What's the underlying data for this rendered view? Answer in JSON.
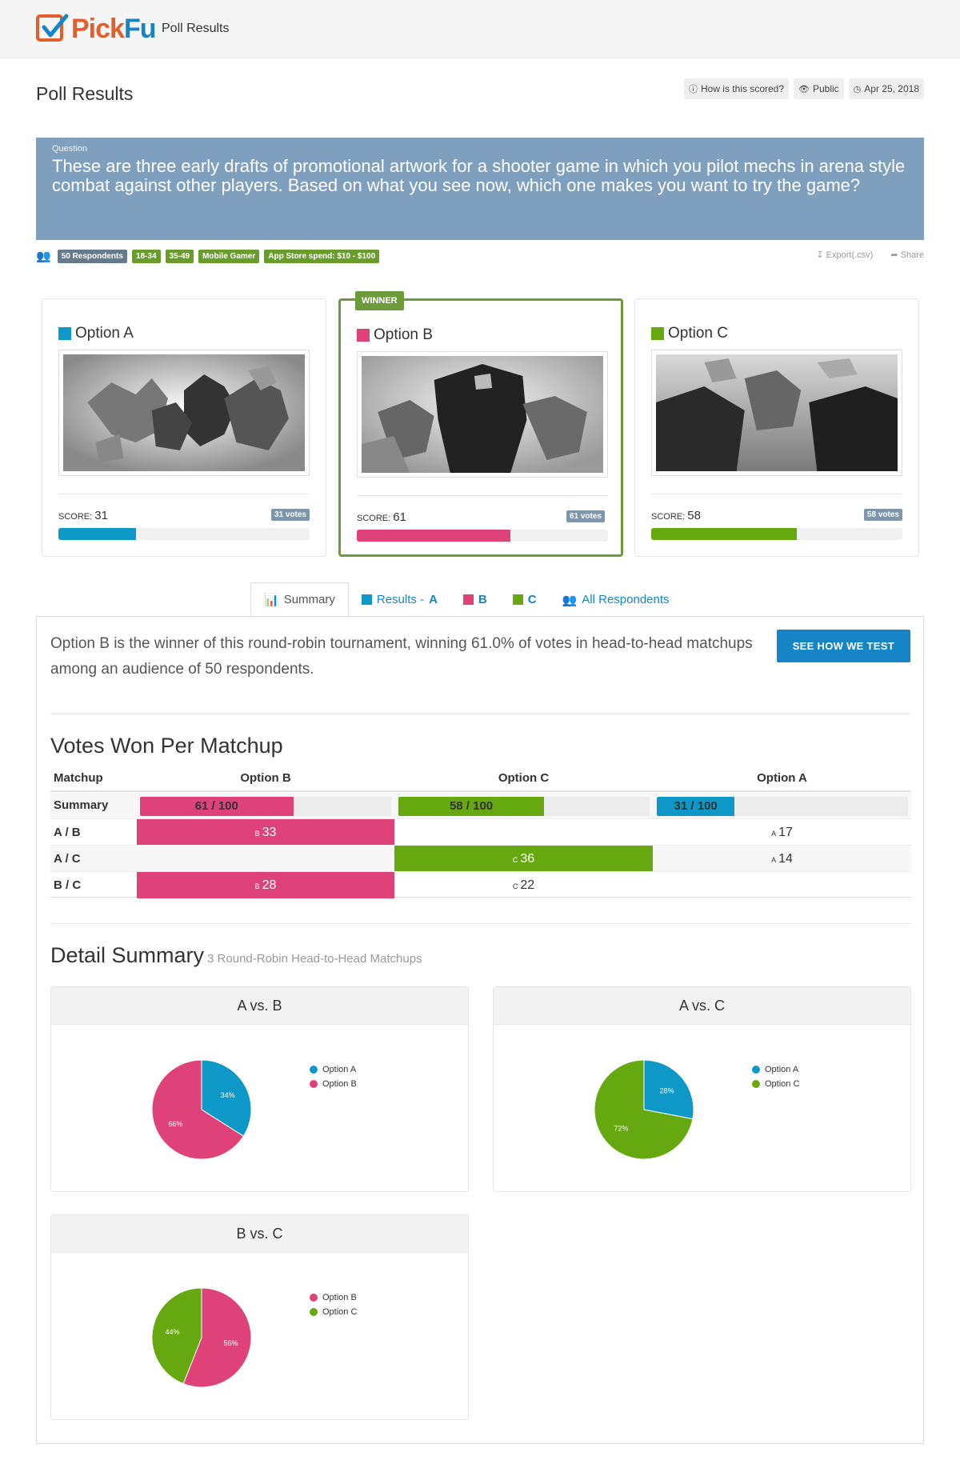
{
  "app": {
    "brand_pick": "Pick",
    "brand_fu": "Fu",
    "top_title": "Poll Results"
  },
  "page": {
    "title": "Poll Results",
    "chips": {
      "scored": "How is this scored?",
      "visibility": "Public",
      "date": "Apr 25, 2018"
    }
  },
  "question": {
    "label": "Question",
    "text": "These are three early drafts of promotional artwork for a shooter game in which you pilot mechs in arena style combat against other players. Based on what you see now, which one makes you want to try the game?"
  },
  "tags": {
    "respondents": "50 Respondents",
    "items": [
      "18-34",
      "35-49",
      "Mobile Gamer",
      "App Store spend: $10 - $100"
    ]
  },
  "actions": {
    "export": "Export(.csv)",
    "share": "Share"
  },
  "colors": {
    "a": "#0d98c7",
    "b": "#de4278",
    "c": "#66a80f"
  },
  "options": [
    {
      "name": "Option A",
      "score_label": "SCORE:",
      "score": "31",
      "votes": "31 votes",
      "fill": 0.31
    },
    {
      "name": "Option B",
      "score_label": "SCORE:",
      "score": "61",
      "votes": "61 votes",
      "fill": 0.61,
      "winner": "WINNER"
    },
    {
      "name": "Option C",
      "score_label": "SCORE:",
      "score": "58",
      "votes": "58 votes",
      "fill": 0.58
    }
  ],
  "tabs": {
    "summary": "Summary",
    "results_a_prefix": "Results - ",
    "results_a": "A",
    "b": "B",
    "c": "C",
    "all": "All Respondents"
  },
  "summary": {
    "text": "Option B is the winner of this round-robin tournament, winning 61.0% of votes in head-to-head matchups among an audience of 50 respondents.",
    "button": "SEE HOW WE TEST"
  },
  "matchups": {
    "title": "Votes Won Per Matchup",
    "headers": [
      "Matchup",
      "Option B",
      "Option C",
      "Option A"
    ],
    "summary_label": "Summary",
    "summary": [
      {
        "text": "61 / 100",
        "fill": 0.61
      },
      {
        "text": "58 / 100",
        "fill": 0.58
      },
      {
        "text": "31 / 100",
        "fill": 0.31
      }
    ],
    "rows": [
      {
        "label": "A / B",
        "b": {
          "mark": "B",
          "val": "33"
        },
        "a": {
          "mark": "A",
          "val": "17"
        }
      },
      {
        "label": "A / C",
        "c": {
          "mark": "C",
          "val": "36"
        },
        "a": {
          "mark": "A",
          "val": "14"
        }
      },
      {
        "label": "B / C",
        "b": {
          "mark": "B",
          "val": "28"
        },
        "c": {
          "mark": "C",
          "val": "22"
        }
      }
    ]
  },
  "detail": {
    "title": "Detail Summary",
    "subtitle": "3 Round-Robin Head-to-Head Matchups",
    "pies": [
      {
        "title": "A vs. B",
        "legend": [
          "Option A",
          "Option B"
        ],
        "slices": [
          {
            "label": "34%",
            "value": 34,
            "color": "#0d98c7"
          },
          {
            "label": "66%",
            "value": 66,
            "color": "#de4278"
          }
        ]
      },
      {
        "title": "A vs. C",
        "legend": [
          "Option A",
          "Option C"
        ],
        "slices": [
          {
            "label": "28%",
            "value": 28,
            "color": "#0d98c7"
          },
          {
            "label": "72%",
            "value": 72,
            "color": "#66a80f"
          }
        ]
      },
      {
        "title": "B vs. C",
        "legend": [
          "Option B",
          "Option C"
        ],
        "slices": [
          {
            "label": "56%",
            "value": 56,
            "color": "#de4278"
          },
          {
            "label": "44%",
            "value": 44,
            "color": "#66a80f"
          }
        ]
      }
    ]
  },
  "chart_data": [
    {
      "type": "pie",
      "title": "A vs. B",
      "categories": [
        "Option A",
        "Option B"
      ],
      "values": [
        34,
        66
      ]
    },
    {
      "type": "pie",
      "title": "A vs. C",
      "categories": [
        "Option A",
        "Option C"
      ],
      "values": [
        28,
        72
      ]
    },
    {
      "type": "pie",
      "title": "B vs. C",
      "categories": [
        "Option B",
        "Option C"
      ],
      "values": [
        56,
        44
      ]
    }
  ]
}
